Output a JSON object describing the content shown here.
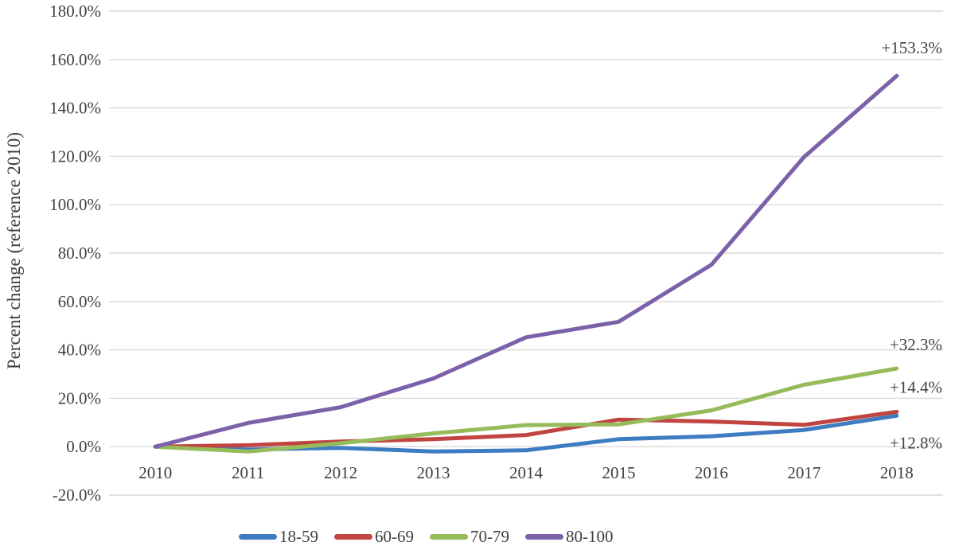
{
  "chart_data": {
    "type": "line",
    "title": "",
    "ylabel": "Percent change (reference 2010)",
    "x_categories": [
      "2010",
      "2011",
      "2012",
      "2013",
      "2014",
      "2015",
      "2016",
      "2017",
      "2018"
    ],
    "ylim": [
      -20,
      180
    ],
    "ytick_step": 20,
    "ytick_labels": [
      "180.0%",
      "160.0%",
      "140.0%",
      "120.0%",
      "100.0%",
      "80.0%",
      "60.0%",
      "40.0%",
      "20.0%",
      "0.0%",
      "-20.0%"
    ],
    "grid": true,
    "legend_position": "bottom",
    "series": [
      {
        "name": "18-59",
        "color": "#3E7CC1",
        "values": [
          0.0,
          -1.2,
          -0.5,
          -2.0,
          -1.5,
          3.1,
          4.3,
          6.9,
          12.8
        ]
      },
      {
        "name": "60-69",
        "color": "#C0443F",
        "values": [
          0.0,
          0.6,
          2.1,
          3.1,
          4.8,
          11.2,
          10.4,
          9.0,
          14.4
        ]
      },
      {
        "name": "70-79",
        "color": "#96BB5A",
        "values": [
          0.0,
          -2.0,
          1.4,
          5.5,
          8.9,
          9.2,
          15.0,
          25.6,
          32.3
        ]
      },
      {
        "name": "80-100",
        "color": "#7C61A9",
        "values": [
          0.0,
          9.8,
          16.3,
          28.2,
          45.2,
          51.6,
          75.2,
          119.7,
          153.3
        ]
      }
    ],
    "end_labels": [
      {
        "series": "80-100",
        "text": "+153.3%",
        "dy": -28
      },
      {
        "series": "70-79",
        "text": "+32.3%",
        "dy": -23
      },
      {
        "series": "60-69",
        "text": "+14.4%",
        "dy": -24
      },
      {
        "series": "18-59",
        "text": "+12.8%",
        "dy": 41
      }
    ],
    "colors": {
      "grid": "#D9D9D9",
      "text": "#3F3F3F",
      "background": "#FFFFFF"
    }
  }
}
